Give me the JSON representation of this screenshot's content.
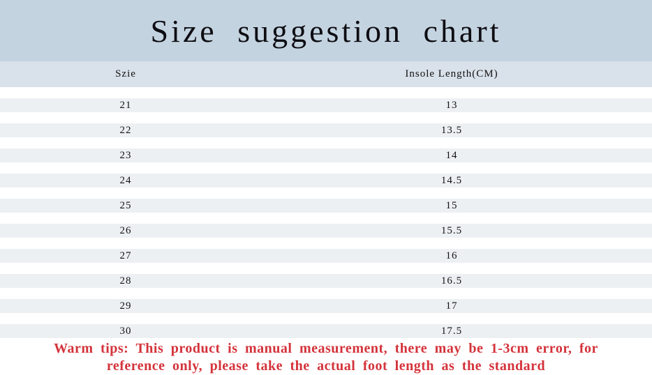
{
  "title": "Size suggestion chart",
  "chart_data": {
    "type": "table",
    "title": "Size suggestion chart",
    "columns": [
      "Szie",
      "Insole Length(CM)"
    ],
    "rows": [
      {
        "size": "21",
        "insole_length_cm": "13"
      },
      {
        "size": "22",
        "insole_length_cm": "13.5"
      },
      {
        "size": "23",
        "insole_length_cm": "14"
      },
      {
        "size": "24",
        "insole_length_cm": "14.5"
      },
      {
        "size": "25",
        "insole_length_cm": "15"
      },
      {
        "size": "26",
        "insole_length_cm": "15.5"
      },
      {
        "size": "27",
        "insole_length_cm": "16"
      },
      {
        "size": "28",
        "insole_length_cm": "16.5"
      },
      {
        "size": "29",
        "insole_length_cm": "17"
      },
      {
        "size": "30",
        "insole_length_cm": "17.5"
      }
    ],
    "layout": {
      "row_striping": true,
      "grid": false
    }
  },
  "warm_tips": {
    "line1": "Warm tips: This product is manual measurement, there may be 1-3cm error, for",
    "line2": "reference only, please take the actual foot length as the standard"
  },
  "colors": {
    "title_band_bg": "#c4d3e0",
    "header_row_bg": "#d9e1ea",
    "row_stripe_bg": "#edf0f3",
    "warm_tips_color": "#d4333b"
  }
}
